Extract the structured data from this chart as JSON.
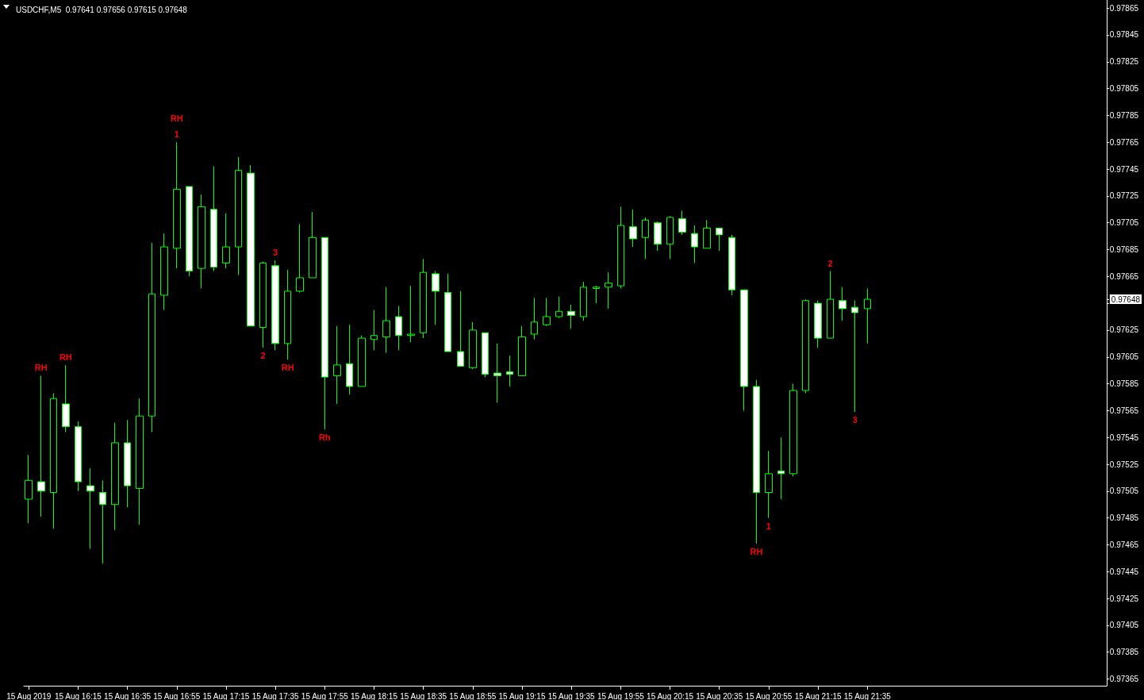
{
  "chart_data": {
    "type": "candlestick",
    "title": "USDCHF,M5  0.97641 0.97656 0.97615 0.97648",
    "color": "#00ff00",
    "grid": false,
    "x": [
      "2019-08-15T15:55",
      "2019-08-15T16:00",
      "2019-08-15T16:05",
      "2019-08-15T16:10",
      "2019-08-15T16:15",
      "2019-08-15T16:20",
      "2019-08-15T16:25",
      "2019-08-15T16:30",
      "2019-08-15T16:35",
      "2019-08-15T16:40",
      "2019-08-15T16:45",
      "2019-08-15T16:50",
      "2019-08-15T16:55",
      "2019-08-15T17:00",
      "2019-08-15T17:05",
      "2019-08-15T17:10",
      "2019-08-15T17:15",
      "2019-08-15T17:20",
      "2019-08-15T17:25",
      "2019-08-15T17:30",
      "2019-08-15T17:35",
      "2019-08-15T17:40",
      "2019-08-15T17:45",
      "2019-08-15T17:50",
      "2019-08-15T17:55",
      "2019-08-15T18:00",
      "2019-08-15T18:05",
      "2019-08-15T18:10",
      "2019-08-15T18:15",
      "2019-08-15T18:20",
      "2019-08-15T18:25",
      "2019-08-15T18:30",
      "2019-08-15T18:35",
      "2019-08-15T18:40",
      "2019-08-15T18:45",
      "2019-08-15T18:50",
      "2019-08-15T18:55",
      "2019-08-15T19:00",
      "2019-08-15T19:05",
      "2019-08-15T19:10",
      "2019-08-15T19:15",
      "2019-08-15T19:20",
      "2019-08-15T19:25",
      "2019-08-15T19:30",
      "2019-08-15T19:35",
      "2019-08-15T19:40",
      "2019-08-15T19:45",
      "2019-08-15T19:50",
      "2019-08-15T19:55",
      "2019-08-15T20:00",
      "2019-08-15T20:05",
      "2019-08-15T20:10",
      "2019-08-15T20:15",
      "2019-08-15T20:20",
      "2019-08-15T20:25",
      "2019-08-15T20:30",
      "2019-08-15T20:35",
      "2019-08-15T20:40",
      "2019-08-15T20:45",
      "2019-08-15T20:50",
      "2019-08-15T20:55",
      "2019-08-15T21:00",
      "2019-08-15T21:05",
      "2019-08-15T21:10",
      "2019-08-15T21:15",
      "2019-08-15T21:20",
      "2019-08-15T21:25",
      "2019-08-15T21:30",
      "2019-08-15T21:35"
    ],
    "ohlc": [
      [
        0.97499,
        0.97532,
        0.97481,
        0.97513
      ],
      [
        0.97512,
        0.97591,
        0.97486,
        0.97505
      ],
      [
        0.97504,
        0.97578,
        0.97477,
        0.97574
      ],
      [
        0.9757,
        0.97599,
        0.97549,
        0.97553
      ],
      [
        0.97553,
        0.97557,
        0.97505,
        0.97512
      ],
      [
        0.97509,
        0.97522,
        0.97462,
        0.97505
      ],
      [
        0.97504,
        0.97513,
        0.97451,
        0.97495
      ],
      [
        0.97495,
        0.97556,
        0.97476,
        0.97541
      ],
      [
        0.97541,
        0.97558,
        0.97493,
        0.97509
      ],
      [
        0.97507,
        0.97574,
        0.9748,
        0.97561
      ],
      [
        0.97561,
        0.9769,
        0.97549,
        0.97652
      ],
      [
        0.97651,
        0.97697,
        0.9764,
        0.97687
      ],
      [
        0.97686,
        0.97765,
        0.97671,
        0.9773
      ],
      [
        0.97732,
        0.97732,
        0.97665,
        0.97669
      ],
      [
        0.97671,
        0.97726,
        0.97656,
        0.97717
      ],
      [
        0.97715,
        0.97747,
        0.97669,
        0.97672
      ],
      [
        0.97675,
        0.97712,
        0.97671,
        0.97687
      ],
      [
        0.97687,
        0.97754,
        0.97666,
        0.97744
      ],
      [
        0.97742,
        0.97748,
        0.97628,
        0.97628
      ],
      [
        0.97627,
        0.97676,
        0.97612,
        0.97675
      ],
      [
        0.97673,
        0.97677,
        0.9761,
        0.97615
      ],
      [
        0.97615,
        0.9767,
        0.97603,
        0.97654
      ],
      [
        0.97654,
        0.97704,
        0.97653,
        0.97664
      ],
      [
        0.97664,
        0.97713,
        0.97664,
        0.97694
      ],
      [
        0.97694,
        0.97694,
        0.97551,
        0.9759
      ],
      [
        0.97591,
        0.97628,
        0.9757,
        0.97599
      ],
      [
        0.976,
        0.97629,
        0.97577,
        0.97583
      ],
      [
        0.97583,
        0.97621,
        0.97583,
        0.97619
      ],
      [
        0.97618,
        0.9764,
        0.9761,
        0.97621
      ],
      [
        0.9762,
        0.97657,
        0.97608,
        0.97632
      ],
      [
        0.97635,
        0.97643,
        0.9761,
        0.97621
      ],
      [
        0.97621,
        0.97658,
        0.97616,
        0.97622
      ],
      [
        0.97623,
        0.97678,
        0.97619,
        0.97668
      ],
      [
        0.97667,
        0.97669,
        0.97629,
        0.97654
      ],
      [
        0.97653,
        0.97667,
        0.97609,
        0.97609
      ],
      [
        0.97609,
        0.97654,
        0.97598,
        0.97598
      ],
      [
        0.97597,
        0.97631,
        0.97596,
        0.97625
      ],
      [
        0.97623,
        0.97623,
        0.9759,
        0.97592
      ],
      [
        0.97593,
        0.97615,
        0.97571,
        0.97591
      ],
      [
        0.97594,
        0.97606,
        0.97583,
        0.97592
      ],
      [
        0.97591,
        0.97628,
        0.97591,
        0.9762
      ],
      [
        0.97622,
        0.97649,
        0.97618,
        0.97631
      ],
      [
        0.97629,
        0.97649,
        0.97628,
        0.97635
      ],
      [
        0.97635,
        0.9765,
        0.97634,
        0.97639
      ],
      [
        0.97639,
        0.97644,
        0.97626,
        0.97636
      ],
      [
        0.97635,
        0.97661,
        0.97632,
        0.97657
      ],
      [
        0.97656,
        0.97658,
        0.97645,
        0.97657
      ],
      [
        0.97657,
        0.97668,
        0.97641,
        0.9766
      ],
      [
        0.97658,
        0.97717,
        0.97656,
        0.97703
      ],
      [
        0.97702,
        0.97715,
        0.97687,
        0.97693
      ],
      [
        0.97694,
        0.97709,
        0.97678,
        0.97707
      ],
      [
        0.97705,
        0.97706,
        0.97684,
        0.97689
      ],
      [
        0.97689,
        0.9771,
        0.97678,
        0.97709
      ],
      [
        0.97708,
        0.97714,
        0.97696,
        0.97698
      ],
      [
        0.97697,
        0.97703,
        0.97675,
        0.97687
      ],
      [
        0.97686,
        0.97707,
        0.97686,
        0.97701
      ],
      [
        0.97701,
        0.97701,
        0.97684,
        0.97696
      ],
      [
        0.97694,
        0.97696,
        0.97651,
        0.97655
      ],
      [
        0.97655,
        0.97655,
        0.97565,
        0.97583
      ],
      [
        0.97583,
        0.97588,
        0.97466,
        0.97504
      ],
      [
        0.97504,
        0.97535,
        0.97485,
        0.97518
      ],
      [
        0.9752,
        0.97545,
        0.97499,
        0.97518
      ],
      [
        0.97518,
        0.97585,
        0.97516,
        0.9758
      ],
      [
        0.9758,
        0.97648,
        0.97578,
        0.97647
      ],
      [
        0.97645,
        0.97647,
        0.97612,
        0.97619
      ],
      [
        0.97619,
        0.97669,
        0.97619,
        0.97648
      ],
      [
        0.97647,
        0.97657,
        0.97632,
        0.97641
      ],
      [
        0.97642,
        0.97647,
        0.97564,
        0.97638
      ],
      [
        0.97641,
        0.97656,
        0.97615,
        0.97648
      ]
    ],
    "annotations": [
      {
        "text": "RH",
        "x": "2019-08-15T16:00",
        "y": 0.97591
      },
      {
        "text": "RH",
        "x": "2019-08-15T16:10",
        "y": 0.97599
      },
      {
        "text": "1",
        "x": "2019-08-15T16:55",
        "y": 0.97765
      },
      {
        "text": "RH",
        "x": "2019-08-15T16:55",
        "y": 0.97765
      },
      {
        "text": "2",
        "x": "2019-08-15T17:30",
        "y": 0.97612
      },
      {
        "text": "3",
        "x": "2019-08-15T17:35",
        "y": 0.97677
      },
      {
        "text": "RH",
        "x": "2019-08-15T17:40",
        "y": 0.97603
      },
      {
        "text": "Rh",
        "x": "2019-08-15T17:55",
        "y": 0.97551
      },
      {
        "text": "RH",
        "x": "2019-08-15T20:50",
        "y": 0.97466
      },
      {
        "text": "1",
        "x": "2019-08-15T20:55",
        "y": 0.97485
      },
      {
        "text": "2",
        "x": "2019-08-15T21:20",
        "y": 0.97669
      },
      {
        "text": "3",
        "x": "2019-08-15T21:30",
        "y": 0.97564
      }
    ],
    "xlim": [
      "2019-08-15T15:53",
      "2019-08-15T23:12"
    ],
    "xticks": [
      {
        "value": "2019-08-15T15:55",
        "label": "15 Aug 2019"
      },
      {
        "value": "2019-08-15T16:15",
        "label": "15 Aug 16:15"
      },
      {
        "value": "2019-08-15T16:35",
        "label": "15 Aug 16:35"
      },
      {
        "value": "2019-08-15T16:55",
        "label": "15 Aug 16:55"
      },
      {
        "value": "2019-08-15T17:15",
        "label": "15 Aug 17:15"
      },
      {
        "value": "2019-08-15T17:35",
        "label": "15 Aug 17:35"
      },
      {
        "value": "2019-08-15T17:55",
        "label": "15 Aug 17:55"
      },
      {
        "value": "2019-08-15T18:15",
        "label": "15 Aug 18:15"
      },
      {
        "value": "2019-08-15T18:35",
        "label": "15 Aug 18:35"
      },
      {
        "value": "2019-08-15T18:55",
        "label": "15 Aug 18:55"
      },
      {
        "value": "2019-08-15T19:15",
        "label": "15 Aug 19:15"
      },
      {
        "value": "2019-08-15T19:35",
        "label": "15 Aug 19:35"
      },
      {
        "value": "2019-08-15T19:55",
        "label": "15 Aug 19:55"
      },
      {
        "value": "2019-08-15T20:15",
        "label": "15 Aug 20:15"
      },
      {
        "value": "2019-08-15T20:35",
        "label": "15 Aug 20:35"
      },
      {
        "value": "2019-08-15T20:55",
        "label": "15 Aug 20:55"
      },
      {
        "value": "2019-08-15T21:15",
        "label": "15 Aug 21:15"
      },
      {
        "value": "2019-08-15T21:35",
        "label": "15 Aug 21:35"
      }
    ],
    "ylim": [
      0.9736,
      0.97871
    ],
    "yticks": [
      0.97365,
      0.97385,
      0.97405,
      0.97425,
      0.97445,
      0.97465,
      0.97485,
      0.97505,
      0.97525,
      0.97545,
      0.97565,
      0.97585,
      0.97605,
      0.97625,
      {
        "value": 0.97645,
        "label": null
      },
      0.97648,
      0.97665,
      0.97685,
      0.97705,
      0.97725,
      0.97745,
      0.97765,
      0.97785,
      0.97805,
      0.97825,
      0.97845,
      0.97865
    ]
  }
}
